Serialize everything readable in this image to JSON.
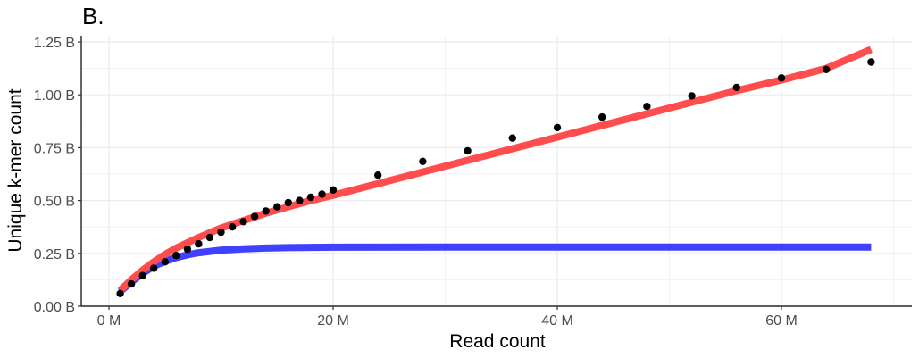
{
  "chart_data": {
    "type": "scatter",
    "title": "B.",
    "xlabel": "Read count",
    "ylabel": "Unique k-mer count",
    "xlim": [
      -2,
      71.5
    ],
    "ylim": [
      0,
      1.25
    ],
    "x_ticks": [
      0,
      20,
      40,
      60
    ],
    "x_tick_labels": [
      "0 M",
      "20 M",
      "40 M",
      "60 M"
    ],
    "y_ticks": [
      0,
      0.25,
      0.5,
      0.75,
      1.0,
      1.25
    ],
    "y_tick_labels": [
      "0.00 B",
      "0.25 B",
      "0.50 B",
      "0.75 B",
      "1.00 B",
      "1.25 B"
    ],
    "x_unit": "M reads",
    "y_unit": "B k-mers",
    "grid": true,
    "legend": "none",
    "series": [
      {
        "kind": "points",
        "color": "#000000",
        "x": [
          1,
          2,
          3,
          4,
          5,
          6,
          7,
          8,
          9,
          10,
          11,
          12,
          13,
          14,
          15,
          16,
          17,
          18,
          19,
          20,
          24,
          28,
          32,
          36,
          40,
          44,
          48,
          52,
          56,
          60,
          64,
          68
        ],
        "y": [
          0.06,
          0.105,
          0.145,
          0.18,
          0.21,
          0.24,
          0.27,
          0.295,
          0.325,
          0.35,
          0.375,
          0.4,
          0.425,
          0.45,
          0.47,
          0.49,
          0.5,
          0.515,
          0.53,
          0.55,
          0.62,
          0.685,
          0.735,
          0.795,
          0.845,
          0.895,
          0.945,
          0.995,
          1.035,
          1.08,
          1.12,
          1.155
        ]
      },
      {
        "kind": "line",
        "color": "#ff4d4d",
        "x": [
          1,
          2,
          3,
          4,
          5,
          6,
          8,
          10,
          12,
          14,
          16,
          18,
          20,
          24,
          28,
          32,
          36,
          40,
          44,
          48,
          52,
          56,
          60,
          64,
          68
        ],
        "y": [
          0.075,
          0.125,
          0.17,
          0.21,
          0.245,
          0.275,
          0.325,
          0.37,
          0.405,
          0.44,
          0.47,
          0.5,
          0.525,
          0.58,
          0.635,
          0.69,
          0.745,
          0.8,
          0.855,
          0.91,
          0.965,
          1.02,
          1.07,
          1.125,
          1.215
        ]
      },
      {
        "kind": "line",
        "color": "#4040ff",
        "x": [
          1,
          2,
          3,
          4,
          5,
          6,
          7,
          8,
          10,
          12,
          14,
          16,
          20,
          30,
          40,
          50,
          60,
          68
        ],
        "y": [
          0.07,
          0.115,
          0.155,
          0.19,
          0.212,
          0.23,
          0.243,
          0.253,
          0.265,
          0.271,
          0.275,
          0.277,
          0.279,
          0.28,
          0.28,
          0.28,
          0.28,
          0.28
        ]
      }
    ]
  }
}
